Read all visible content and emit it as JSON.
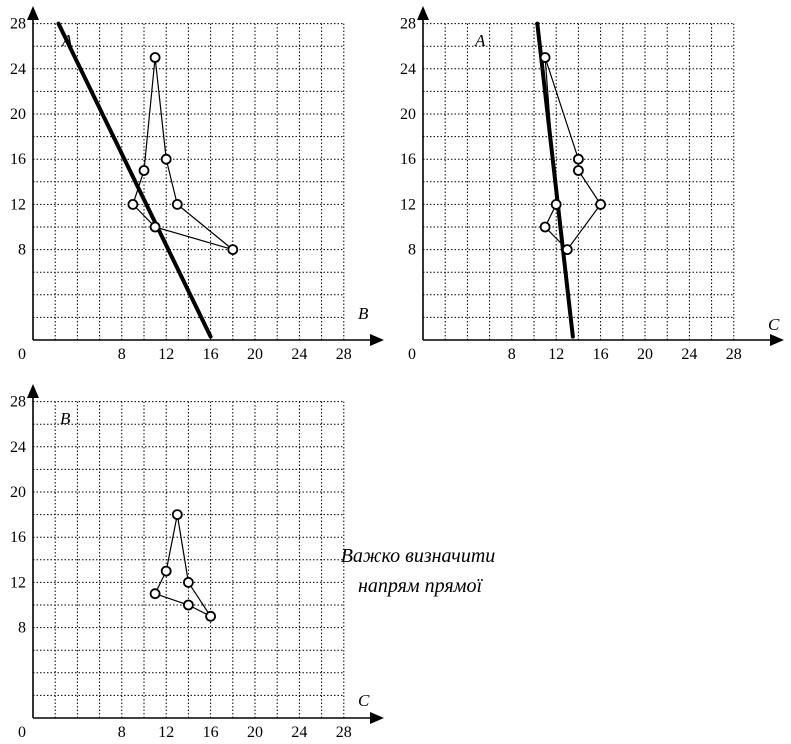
{
  "chart_data": [
    {
      "type": "scatter",
      "title": "",
      "xlabel": "B",
      "ylabel": "A",
      "origin_label": "0",
      "xlim": [
        0,
        32
      ],
      "ylim": [
        0,
        30
      ],
      "x_ticks": [
        8,
        12,
        16,
        20,
        24,
        28
      ],
      "y_ticks": [
        8,
        12,
        16,
        20,
        24,
        28
      ],
      "grid": true,
      "polygon_closed": true,
      "points": [
        {
          "x": 11,
          "y": 25
        },
        {
          "x": 12,
          "y": 16
        },
        {
          "x": 13,
          "y": 12
        },
        {
          "x": 18,
          "y": 8
        },
        {
          "x": 11,
          "y": 10
        },
        {
          "x": 9,
          "y": 12
        },
        {
          "x": 10,
          "y": 15
        }
      ],
      "fit_line": {
        "from": {
          "x": 2.3,
          "y": 28
        },
        "to": {
          "x": 16,
          "y": 0.3
        }
      }
    },
    {
      "type": "scatter",
      "title": "",
      "xlabel": "C",
      "ylabel": "A",
      "origin_label": "0",
      "xlim": [
        0,
        32
      ],
      "ylim": [
        0,
        30
      ],
      "x_ticks": [
        8,
        12,
        16,
        20,
        24,
        28
      ],
      "y_ticks": [
        8,
        12,
        16,
        20,
        24,
        28
      ],
      "grid": true,
      "polygon_closed": true,
      "points": [
        {
          "x": 11,
          "y": 25
        },
        {
          "x": 14,
          "y": 16
        },
        {
          "x": 14,
          "y": 15
        },
        {
          "x": 16,
          "y": 12
        },
        {
          "x": 13,
          "y": 8
        },
        {
          "x": 11,
          "y": 10
        },
        {
          "x": 12,
          "y": 12
        }
      ],
      "fit_line": {
        "from": {
          "x": 10.3,
          "y": 28
        },
        "to": {
          "x": 13.5,
          "y": 0.3
        }
      }
    },
    {
      "type": "scatter",
      "title": "",
      "xlabel": "C",
      "ylabel": "B",
      "origin_label": "0",
      "xlim": [
        0,
        32
      ],
      "ylim": [
        0,
        30
      ],
      "x_ticks": [
        8,
        12,
        16,
        20,
        24,
        28
      ],
      "y_ticks": [
        8,
        12,
        16,
        20,
        24,
        28
      ],
      "grid": true,
      "polygon_closed": true,
      "points": [
        {
          "x": 13,
          "y": 18
        },
        {
          "x": 14,
          "y": 12
        },
        {
          "x": 16,
          "y": 9
        },
        {
          "x": 14,
          "y": 10
        },
        {
          "x": 11,
          "y": 11
        },
        {
          "x": 12,
          "y": 13
        }
      ],
      "fit_line": null
    }
  ],
  "note": {
    "line1": "Важко визначити",
    "line2": "напрям прямої"
  }
}
